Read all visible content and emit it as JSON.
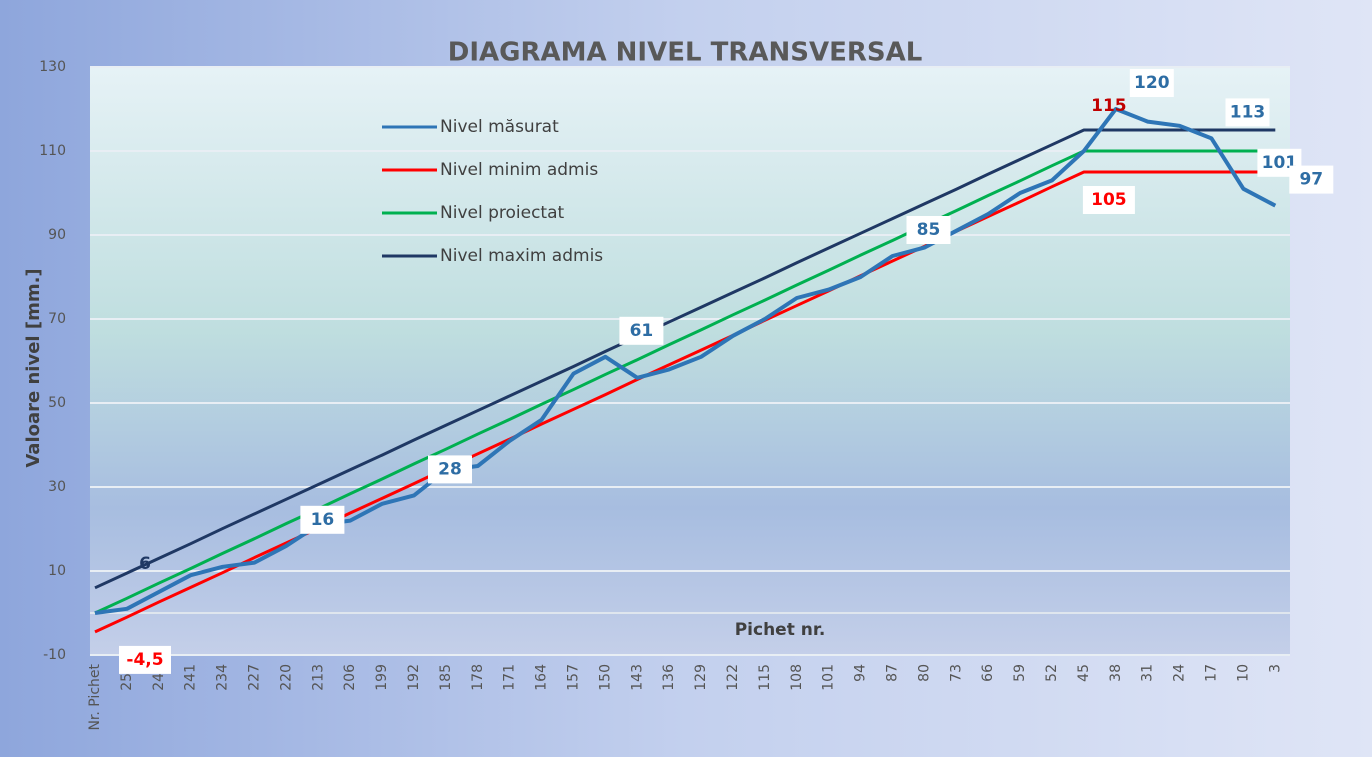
{
  "chart_data": {
    "type": "line",
    "title": "DIAGRAMA NIVEL TRANSVERSAL",
    "y_label": "Valoare nivel [mm.]",
    "x_label": "Pichet nr.",
    "categories": [
      "Nr. Pichet",
      "255",
      "248",
      "241",
      "234",
      "227",
      "220",
      "213",
      "206",
      "199",
      "192",
      "185",
      "178",
      "171",
      "164",
      "157",
      "150",
      "143",
      "136",
      "129",
      "122",
      "115",
      "108",
      "101",
      "94",
      "87",
      "80",
      "73",
      "66",
      "59",
      "52",
      "45",
      "38",
      "31",
      "24",
      "17",
      "10",
      "3"
    ],
    "ylim": [
      -10,
      130
    ],
    "yticks": [
      -10,
      10,
      30,
      50,
      70,
      90,
      110,
      130
    ],
    "grid": true,
    "legend": "top-left",
    "series": [
      {
        "name": "Nivel măsurat",
        "color": "#2e75b6",
        "values": [
          0,
          1,
          5,
          9,
          11,
          12,
          16,
          21,
          22,
          26,
          28,
          34,
          35,
          41,
          46,
          57,
          61,
          56,
          58,
          61,
          66,
          70,
          75,
          77,
          80,
          85,
          87,
          91,
          95,
          100,
          103,
          110,
          120,
          117,
          116,
          113,
          101,
          97
        ],
        "value_labels": [
          null,
          null,
          null,
          null,
          null,
          null,
          "16",
          null,
          null,
          null,
          "28",
          null,
          null,
          null,
          null,
          null,
          "61",
          null,
          null,
          null,
          null,
          null,
          null,
          null,
          null,
          "85",
          null,
          null,
          null,
          null,
          null,
          null,
          "120",
          null,
          null,
          "113",
          "101",
          "97"
        ]
      },
      {
        "name": "Nivel minim admis",
        "color": "#ff0000",
        "values": [
          -4.5,
          -1,
          2.6,
          6.1,
          9.6,
          13.2,
          16.7,
          20.2,
          23.8,
          27.3,
          30.8,
          34.4,
          37.9,
          41.4,
          45,
          48.5,
          52,
          55.6,
          59.1,
          62.6,
          66.1,
          69.7,
          73.2,
          76.7,
          80.3,
          83.8,
          87.3,
          90.9,
          94.4,
          97.9,
          101.5,
          105,
          105,
          105,
          105,
          105,
          105,
          105
        ],
        "value_labels": [
          "-4,5",
          null,
          null,
          null,
          null,
          null,
          null,
          null,
          null,
          null,
          null,
          null,
          null,
          null,
          null,
          null,
          null,
          null,
          null,
          null,
          null,
          null,
          null,
          null,
          null,
          null,
          null,
          null,
          null,
          null,
          null,
          "105",
          null,
          null,
          null,
          null,
          null,
          null
        ]
      },
      {
        "name": "Nivel proiectat",
        "color": "#00b050",
        "values": [
          0,
          3.5,
          7.1,
          10.6,
          14.2,
          17.7,
          21.3,
          24.8,
          28.4,
          31.9,
          35.5,
          39,
          42.6,
          46.1,
          49.7,
          53.2,
          56.8,
          60.3,
          63.9,
          67.4,
          71,
          74.5,
          78.1,
          81.6,
          85.2,
          88.7,
          92.3,
          95.8,
          99.4,
          102.9,
          106.5,
          110,
          110,
          110,
          110,
          110,
          110,
          110
        ]
      },
      {
        "name": "Nivel maxim admis",
        "color": "#1f3864",
        "values": [
          6,
          9.5,
          13,
          16.5,
          20.1,
          23.6,
          27.1,
          30.6,
          34.1,
          37.6,
          41.2,
          44.7,
          48.2,
          51.7,
          55.2,
          58.7,
          62.3,
          65.8,
          69.3,
          72.8,
          76.3,
          79.8,
          83.4,
          86.9,
          90.4,
          93.9,
          97.4,
          100.9,
          104.5,
          108,
          111.5,
          115,
          115,
          115,
          115,
          115,
          115,
          115
        ],
        "value_labels": [
          "6",
          null,
          null,
          null,
          null,
          null,
          null,
          null,
          null,
          null,
          null,
          null,
          null,
          null,
          null,
          null,
          null,
          null,
          null,
          null,
          null,
          null,
          null,
          null,
          null,
          null,
          null,
          null,
          null,
          null,
          null,
          "115",
          null,
          null,
          null,
          null,
          null,
          null
        ]
      }
    ]
  }
}
